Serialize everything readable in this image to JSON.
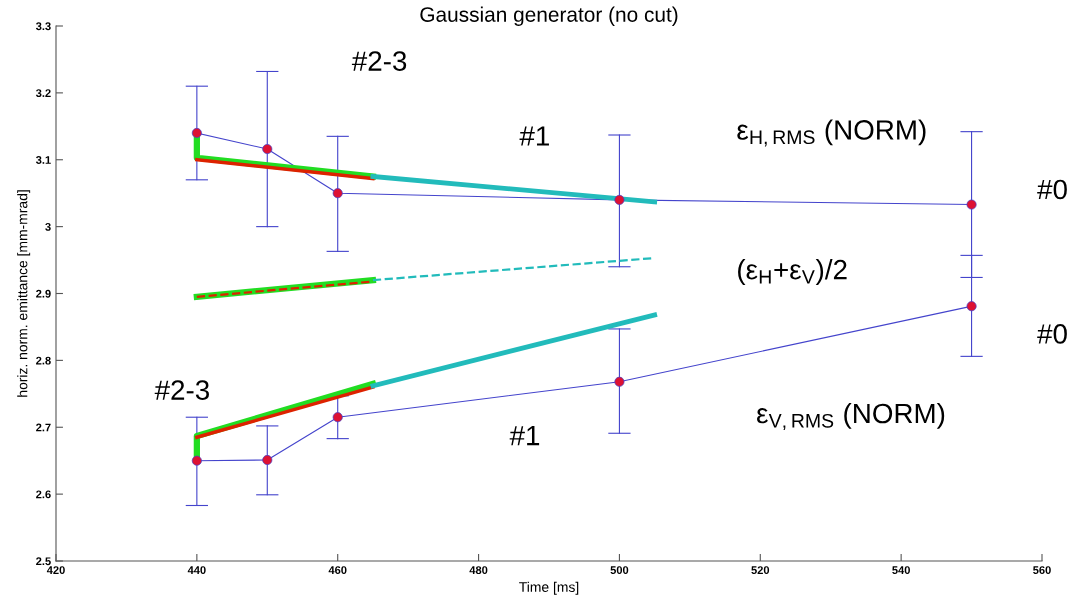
{
  "chart_data": {
    "type": "line",
    "title": "Gaussian generator (no cut)",
    "xlabel": "Time [ms]",
    "ylabel": "horiz. norm. emittance [mm-mrad]",
    "xlim": [
      420,
      560
    ],
    "xticks": [
      420,
      440,
      460,
      480,
      500,
      520,
      540,
      560
    ],
    "ylim": [
      2.5,
      3.3
    ],
    "yticks": [
      2.5,
      2.6,
      2.7,
      2.8,
      2.9,
      3,
      3.1,
      3.2,
      3.3
    ],
    "grid": false,
    "legend": false,
    "series": [
      {
        "x": [
          440,
          440,
          465
        ],
        "values": [
          3.14,
          3.103,
          3.075
        ],
        "color": "#22dd22",
        "line_style": "solid"
      },
      {
        "x": [
          440,
          465
        ],
        "values": [
          3.1,
          3.072
        ],
        "color": "#dd2200",
        "line_style": "solid"
      },
      {
        "x": [
          465,
          505
        ],
        "values": [
          3.075,
          3.037
        ],
        "color": "#22bbbb",
        "line_style": "solid"
      },
      {
        "x": [
          440,
          465
        ],
        "values": [
          2.895,
          2.92
        ],
        "color": "#22dd22",
        "line_style": "solid"
      },
      {
        "x": [
          440,
          465
        ],
        "values": [
          2.895,
          2.918
        ],
        "color": "#dd2200",
        "line_style": "dashed"
      },
      {
        "x": [
          465,
          505
        ],
        "values": [
          2.92,
          2.953
        ],
        "color": "#22bbbb",
        "line_style": "dashed"
      },
      {
        "x": [
          440,
          440,
          465
        ],
        "values": [
          2.65,
          2.687,
          2.765
        ],
        "color": "#22dd22",
        "line_style": "solid"
      },
      {
        "x": [
          440,
          465
        ],
        "values": [
          2.685,
          2.76
        ],
        "color": "#dd2200",
        "line_style": "solid"
      },
      {
        "x": [
          465,
          505
        ],
        "values": [
          2.762,
          2.868
        ],
        "color": "#22bbbb",
        "line_style": "solid"
      },
      {
        "x": [
          440,
          450,
          460,
          500,
          550
        ],
        "values": [
          3.14,
          3.116,
          3.05,
          3.04,
          3.033
        ],
        "errors": [
          [
            3.07,
            3.21
          ],
          [
            3.0,
            3.232
          ],
          [
            2.963,
            3.135
          ],
          [
            2.94,
            3.137
          ],
          [
            2.924,
            3.142
          ]
        ],
        "color": "#4444cc",
        "colors": [
          "#dd1133",
          "#dd1133",
          "#dd1133",
          "#dd1133",
          "#dd1133"
        ],
        "marker": "circle",
        "line_style": "solid"
      },
      {
        "x": [
          440,
          450,
          460,
          500,
          550
        ],
        "values": [
          2.65,
          2.651,
          2.715,
          2.768,
          2.881
        ],
        "errors": [
          [
            2.583,
            2.715
          ],
          [
            2.599,
            2.702
          ],
          [
            2.683,
            2.747
          ],
          [
            2.691,
            2.847
          ],
          [
            2.806,
            2.957
          ]
        ],
        "color": "#4444cc",
        "colors": [
          "#dd1133",
          "#dd1133",
          "#dd1133",
          "#dd1133",
          "#dd1133"
        ],
        "marker": "circle",
        "line_style": "solid"
      }
    ],
    "annotations": [
      "#2-3",
      "#1",
      "ε$_{H,RMS}$ (NORM)",
      "#0",
      "(ε$_{H}$+ε$_{V}$)/2",
      "#0",
      "#2-3",
      "#1",
      "ε$_{V,RMS}$ (NORM)"
    ]
  }
}
